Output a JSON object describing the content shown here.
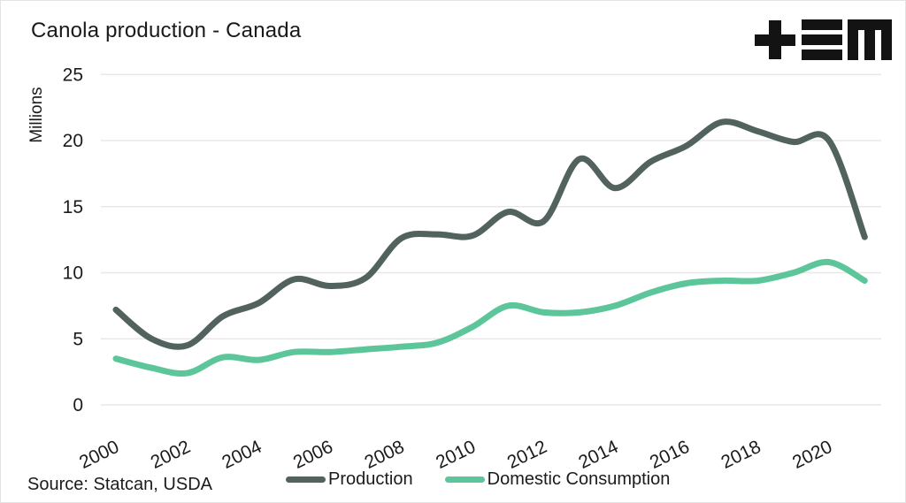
{
  "header": {
    "title": "Canola production - Canada",
    "logo_name": "tem-logo"
  },
  "footer": {
    "source": "Source: Statcan, USDA"
  },
  "colors": {
    "production_line": "#52625F",
    "consumption_line": "#5CC69A",
    "gridline": "#E8E8E8",
    "text": "#1B1B1B",
    "logo": "#131313",
    "background": "#FFFFFF"
  },
  "chart_data": {
    "type": "line",
    "title": "Canola production - Canada",
    "xlabel": "",
    "ylabel": "Millions",
    "ylim": [
      0,
      25
    ],
    "y_ticks": [
      0,
      5,
      10,
      15,
      20,
      25
    ],
    "x_ticks": [
      2000,
      2002,
      2004,
      2006,
      2008,
      2010,
      2012,
      2014,
      2016,
      2018,
      2020
    ],
    "grid": "horizontal",
    "legend_position": "bottom",
    "x": [
      2000,
      2001,
      2002,
      2003,
      2004,
      2005,
      2006,
      2007,
      2008,
      2009,
      2010,
      2011,
      2012,
      2013,
      2014,
      2015,
      2016,
      2017,
      2018,
      2019,
      2020,
      2021
    ],
    "series": [
      {
        "name": "Production",
        "color": "#52625F",
        "values": [
          7.2,
          5.0,
          4.5,
          6.7,
          7.7,
          9.5,
          9.0,
          9.6,
          12.6,
          12.9,
          12.8,
          14.6,
          13.9,
          18.6,
          16.4,
          18.4,
          19.6,
          21.4,
          20.7,
          19.9,
          20.0,
          12.7
        ]
      },
      {
        "name": "Domestic Consumption",
        "color": "#5CC69A",
        "values": [
          3.5,
          2.8,
          2.4,
          3.6,
          3.4,
          4.0,
          4.0,
          4.2,
          4.4,
          4.7,
          5.9,
          7.5,
          7.0,
          7.0,
          7.5,
          8.5,
          9.2,
          9.4,
          9.4,
          10.0,
          10.8,
          9.4
        ]
      }
    ]
  }
}
